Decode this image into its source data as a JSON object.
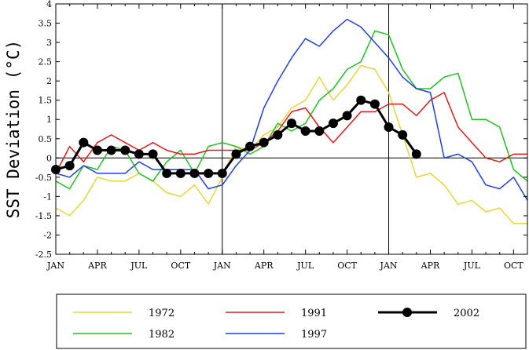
{
  "chart_data": {
    "type": "line",
    "title": "",
    "xlabel": "",
    "ylabel": "SST Deviation (°C)",
    "ylim": [
      -2.5,
      4
    ],
    "xlim": [
      0,
      34
    ],
    "yticks": [
      -2.5,
      -2,
      -1.5,
      -1,
      -0.5,
      0,
      0.5,
      1,
      1.5,
      2,
      2.5,
      3,
      3.5,
      4
    ],
    "ytick_labels": [
      "-2.5",
      "-2",
      "-1.5",
      "-1",
      "-0.5",
      "0",
      "0.5",
      "1",
      "1.5",
      "2",
      "2.5",
      "3",
      "3.5",
      "4"
    ],
    "xticks": [
      0,
      3,
      6,
      9,
      12,
      15,
      18,
      21,
      24,
      27,
      30,
      33
    ],
    "xtick_labels": [
      "JAN",
      "APR",
      "JUL",
      "OCT",
      "JAN",
      "APR",
      "JUL",
      "OCT",
      "JAN",
      "APR",
      "JUL",
      "OCT"
    ],
    "year_dividers": [
      12,
      24
    ],
    "zero_line": 0,
    "series": [
      {
        "name": "1972",
        "color": "#e8d43c",
        "x": [
          0,
          1,
          2,
          3,
          4,
          5,
          6,
          7,
          8,
          9,
          10,
          11,
          12,
          13,
          14,
          15,
          16,
          17,
          18,
          19,
          20,
          21,
          22,
          23,
          24,
          25,
          26,
          27,
          28,
          29,
          30,
          31,
          32,
          33,
          34
        ],
        "values": [
          -1.3,
          -1.5,
          -1.1,
          -0.5,
          -0.6,
          -0.6,
          -0.4,
          -0.6,
          -0.9,
          -1.0,
          -0.7,
          -1.2,
          -0.5,
          0.3,
          0.2,
          0.6,
          0.8,
          1.3,
          1.5,
          2.1,
          1.5,
          1.9,
          2.4,
          2.3,
          1.7,
          0.6,
          -0.5,
          -0.4,
          -0.7,
          -1.2,
          -1.1,
          -1.4,
          -1.3,
          -1.7,
          -1.7
        ],
        "marker": false
      },
      {
        "name": "1982",
        "color": "#22c022",
        "x": [
          0,
          1,
          2,
          3,
          4,
          5,
          6,
          7,
          8,
          9,
          10,
          11,
          12,
          13,
          14,
          15,
          16,
          17,
          18,
          19,
          20,
          21,
          22,
          23,
          24,
          25,
          26,
          27,
          28,
          29,
          30,
          31,
          32,
          33,
          34
        ],
        "values": [
          -0.6,
          -0.8,
          -0.2,
          -0.3,
          0.3,
          0.2,
          -0.4,
          -0.6,
          -0.1,
          0.2,
          -0.4,
          0.3,
          0.4,
          0.3,
          0.1,
          0.3,
          0.9,
          0.7,
          0.9,
          1.5,
          1.8,
          2.3,
          2.5,
          3.3,
          3.2,
          2.3,
          1.8,
          1.8,
          2.1,
          2.2,
          1.0,
          1.0,
          0.8,
          -0.3,
          -0.6
        ],
        "marker": false
      },
      {
        "name": "1991",
        "color": "#e01a1a",
        "x": [
          0,
          1,
          2,
          3,
          4,
          5,
          6,
          7,
          8,
          9,
          10,
          11,
          12,
          13,
          14,
          15,
          16,
          17,
          18,
          19,
          20,
          21,
          22,
          23,
          24,
          25,
          26,
          27,
          28,
          29,
          30,
          31,
          32,
          33,
          34
        ],
        "values": [
          -0.4,
          0.3,
          -0.1,
          0.4,
          0.6,
          0.4,
          0.2,
          0.4,
          0.2,
          0.1,
          0.1,
          0.2,
          0.2,
          0.2,
          0.2,
          0.4,
          0.7,
          1.2,
          1.3,
          0.8,
          0.4,
          0.8,
          1.2,
          1.2,
          1.4,
          1.4,
          1.1,
          1.5,
          1.7,
          0.8,
          0.4,
          0.0,
          -0.1,
          0.1,
          0.1
        ],
        "marker": false
      },
      {
        "name": "1997",
        "color": "#1f3fe0",
        "x": [
          0,
          1,
          2,
          3,
          4,
          5,
          6,
          7,
          8,
          9,
          10,
          11,
          12,
          13,
          14,
          15,
          16,
          17,
          18,
          19,
          20,
          21,
          22,
          23,
          24,
          25,
          26,
          27,
          28,
          29,
          30,
          31,
          32,
          33,
          34
        ],
        "values": [
          -0.4,
          -0.5,
          -0.2,
          -0.4,
          -0.4,
          -0.4,
          -0.1,
          -0.3,
          -0.3,
          -0.3,
          -0.3,
          -0.8,
          -0.7,
          -0.2,
          0.2,
          1.3,
          2.0,
          2.6,
          3.1,
          2.9,
          3.3,
          3.6,
          3.4,
          3.0,
          2.6,
          2.1,
          1.8,
          1.7,
          0.0,
          0.1,
          -0.1,
          -0.7,
          -0.8,
          -0.5,
          -1.1
        ],
        "marker": false
      },
      {
        "name": "2002",
        "color": "#000000",
        "x": [
          0,
          1,
          2,
          3,
          4,
          5,
          6,
          7,
          8,
          9,
          10,
          11,
          12,
          13,
          14,
          15,
          16,
          17,
          18,
          19,
          20,
          21,
          22,
          23,
          24,
          25,
          26
        ],
        "values": [
          -0.3,
          -0.2,
          0.4,
          0.2,
          0.2,
          0.2,
          0.1,
          0.1,
          -0.4,
          -0.4,
          -0.4,
          -0.4,
          -0.4,
          0.1,
          0.3,
          0.4,
          0.6,
          0.9,
          0.7,
          0.7,
          0.9,
          1.1,
          1.5,
          1.4,
          0.8,
          0.6,
          0.1
        ],
        "marker": true
      }
    ],
    "legend": {
      "placement": "below",
      "entries": [
        {
          "label": "1972",
          "color": "#e8d43c",
          "marker": false
        },
        {
          "label": "1991",
          "color": "#e01a1a",
          "marker": false
        },
        {
          "label": "2002",
          "color": "#000000",
          "marker": true
        },
        {
          "label": "1982",
          "color": "#22c022",
          "marker": false
        },
        {
          "label": "1997",
          "color": "#1f3fe0",
          "marker": false
        }
      ]
    }
  }
}
